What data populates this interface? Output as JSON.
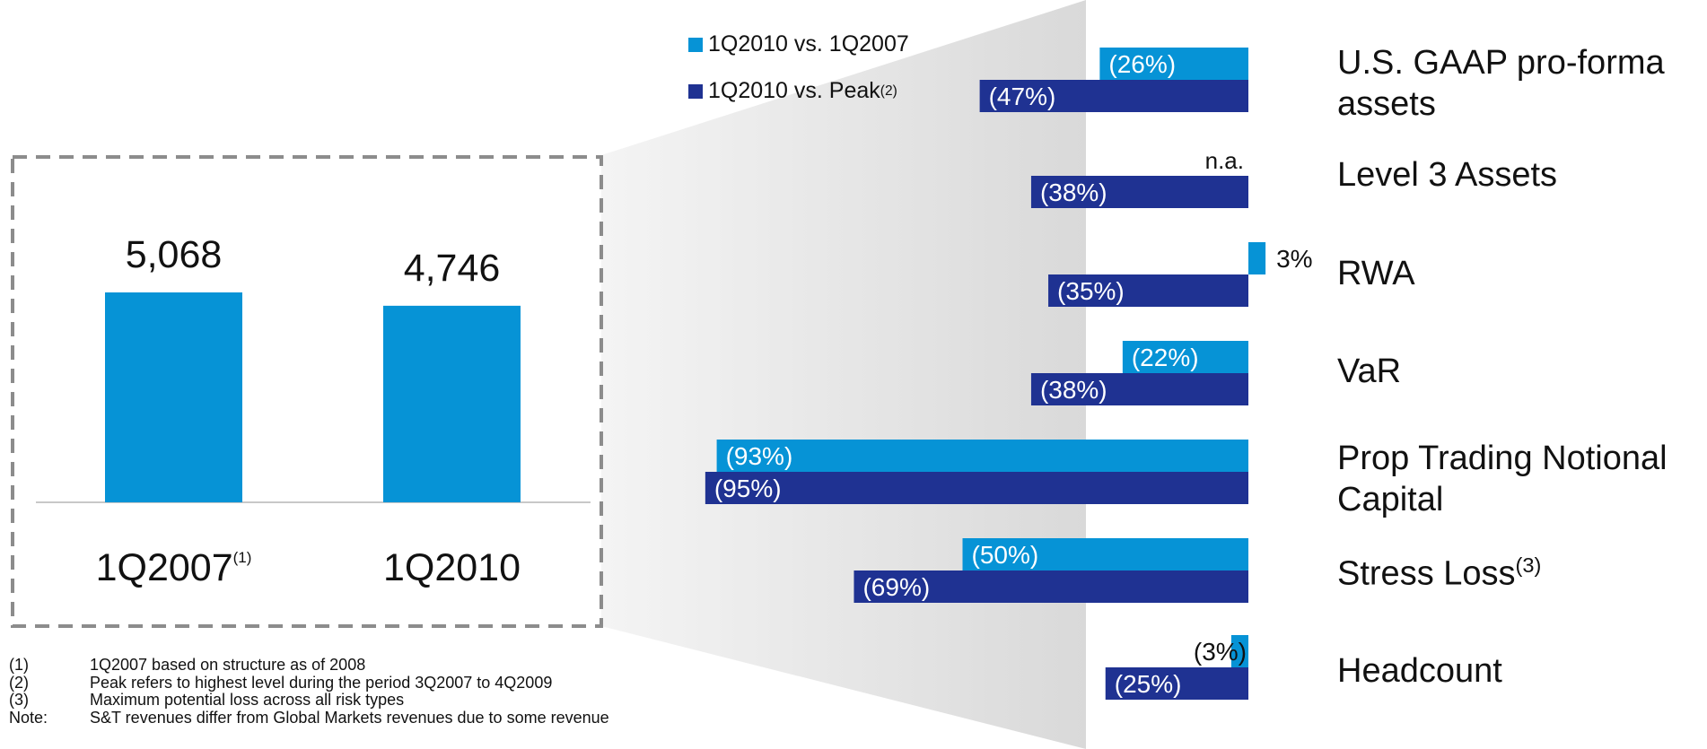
{
  "left_chart": {
    "type": "bar",
    "categories": [
      "1Q2007",
      "1Q2010"
    ],
    "category_footnote": [
      "(1)",
      ""
    ],
    "values": [
      5068,
      4746
    ],
    "value_labels": [
      "5,068",
      "4,746"
    ],
    "color": "#0693d6"
  },
  "legend": {
    "items": [
      {
        "label": "1Q2010 vs. 1Q2007",
        "sup": "",
        "color": "#0693d6"
      },
      {
        "label": "1Q2010 vs. Peak",
        "sup": "(2)",
        "color": "#1f3292"
      }
    ]
  },
  "chart_data": {
    "type": "bar",
    "orientation": "horizontal",
    "categories": [
      "U.S. GAAP pro-forma assets",
      "Level 3 Assets",
      "RWA",
      "VaR",
      "Prop Trading Notional Capital",
      "Stress Loss",
      "Headcount"
    ],
    "category_footnotes": [
      "",
      "",
      "",
      "",
      "",
      "(3)",
      ""
    ],
    "series": [
      {
        "name": "1Q2010 vs. 1Q2007",
        "color": "#0693d6",
        "values": [
          -26,
          null,
          3,
          -22,
          -93,
          -50,
          -3
        ],
        "labels": [
          "(26%)",
          "n.a.",
          "3%",
          "(22%)",
          "(93%)",
          "(50%)",
          "(3%)"
        ]
      },
      {
        "name": "1Q2010 vs. Peak",
        "color": "#1f3292",
        "values": [
          -47,
          -38,
          -35,
          -38,
          -95,
          -69,
          -25
        ],
        "labels": [
          "(47%)",
          "(38%)",
          "(35%)",
          "(38%)",
          "(95%)",
          "(69%)",
          "(25%)"
        ]
      }
    ]
  },
  "category_display": [
    {
      "lines": [
        "U.S. GAAP pro-forma",
        "assets"
      ],
      "sup": ""
    },
    {
      "lines": [
        "Level 3 Assets"
      ],
      "sup": ""
    },
    {
      "lines": [
        "RWA"
      ],
      "sup": ""
    },
    {
      "lines": [
        "VaR"
      ],
      "sup": ""
    },
    {
      "lines": [
        "Prop Trading Notional",
        "Capital"
      ],
      "sup": ""
    },
    {
      "lines": [
        "Stress Loss"
      ],
      "sup": "(3)"
    },
    {
      "lines": [
        "Headcount"
      ],
      "sup": ""
    }
  ],
  "footnotes": [
    {
      "key": "(1)",
      "text": "1Q2007 based on structure as of 2008"
    },
    {
      "key": "(2)",
      "text": "Peak refers to highest level during the period 3Q2007 to 4Q2009"
    },
    {
      "key": "(3)",
      "text": "Maximum potential loss across all risk types"
    },
    {
      "key": "Note:",
      "text": "S&T revenues differ from Global Markets revenues due to some revenue"
    }
  ]
}
